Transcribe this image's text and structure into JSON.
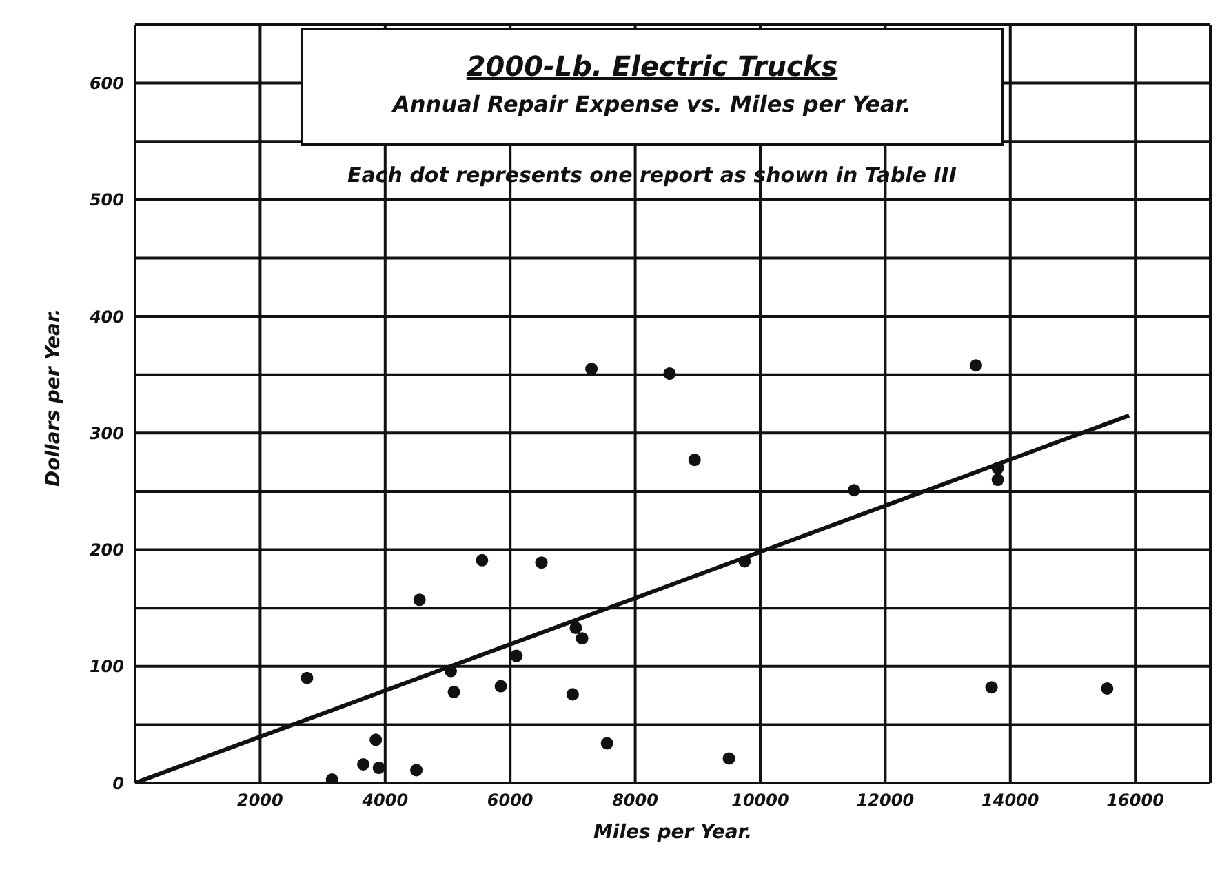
{
  "chart_data": {
    "type": "scatter",
    "title": "2000-Lb. Electric Trucks",
    "subtitle": "Annual Repair Expense vs. Miles per Year.",
    "xlabel": "Miles per Year.",
    "ylabel": "Dollars per Year.",
    "annotations": [
      "Each dot represents one report as shown in Table III"
    ],
    "xlim": [
      0,
      17200
    ],
    "ylim": [
      0,
      650
    ],
    "xticks": [
      2000,
      4000,
      6000,
      8000,
      10000,
      12000,
      14000,
      16000
    ],
    "yticks": [
      0,
      {
        "value": 50,
        "label": null
      },
      100,
      {
        "value": 150,
        "label": null
      },
      200,
      {
        "value": 250,
        "label": null
      },
      300,
      {
        "value": 350,
        "label": null
      },
      400,
      {
        "value": 450,
        "label": null
      },
      500,
      {
        "value": 550,
        "label": null
      },
      600
    ],
    "grid": true,
    "legend": false,
    "series": [
      {
        "marker": "circle",
        "color": "#111111",
        "x": [
          2750,
          3150,
          3650,
          3850,
          3900,
          4500,
          4550,
          5050,
          5100,
          5550,
          5850,
          6100,
          6500,
          7000,
          7050,
          7150,
          7300,
          7550,
          8550,
          8950,
          9500,
          9750,
          11500,
          13450,
          13800,
          13800,
          13700,
          15550
        ],
        "values": [
          90,
          3,
          16,
          37,
          13,
          11,
          157,
          96,
          78,
          191,
          83,
          109,
          189,
          76,
          133,
          124,
          355,
          34,
          351,
          277,
          21,
          190,
          251,
          358,
          270,
          260,
          82,
          81
        ]
      },
      {
        "type": "line",
        "marker": "none",
        "color": "#111111",
        "x": [
          0,
          15900
        ],
        "values": [
          0,
          315
        ]
      }
    ]
  }
}
